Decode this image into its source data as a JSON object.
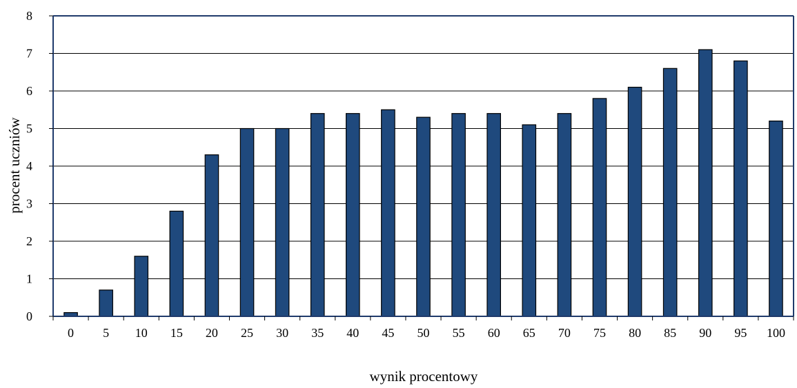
{
  "chart_data": {
    "type": "bar",
    "categories": [
      "0",
      "5",
      "10",
      "15",
      "20",
      "25",
      "30",
      "35",
      "40",
      "45",
      "50",
      "55",
      "60",
      "65",
      "70",
      "75",
      "80",
      "85",
      "90",
      "95",
      "100"
    ],
    "values": [
      0.1,
      0.7,
      1.6,
      2.8,
      4.3,
      5.0,
      5.0,
      5.4,
      5.4,
      5.5,
      5.3,
      5.4,
      5.4,
      5.1,
      5.4,
      5.8,
      6.1,
      6.6,
      7.1,
      6.8,
      5.2
    ],
    "title": "",
    "xlabel": "wynik procentowy",
    "ylabel": "procent uczniów",
    "ylim": [
      0,
      8
    ],
    "yticks": [
      0,
      1,
      2,
      3,
      4,
      5,
      6,
      7,
      8
    ],
    "grid": true,
    "bar_color": "#1f497d"
  }
}
